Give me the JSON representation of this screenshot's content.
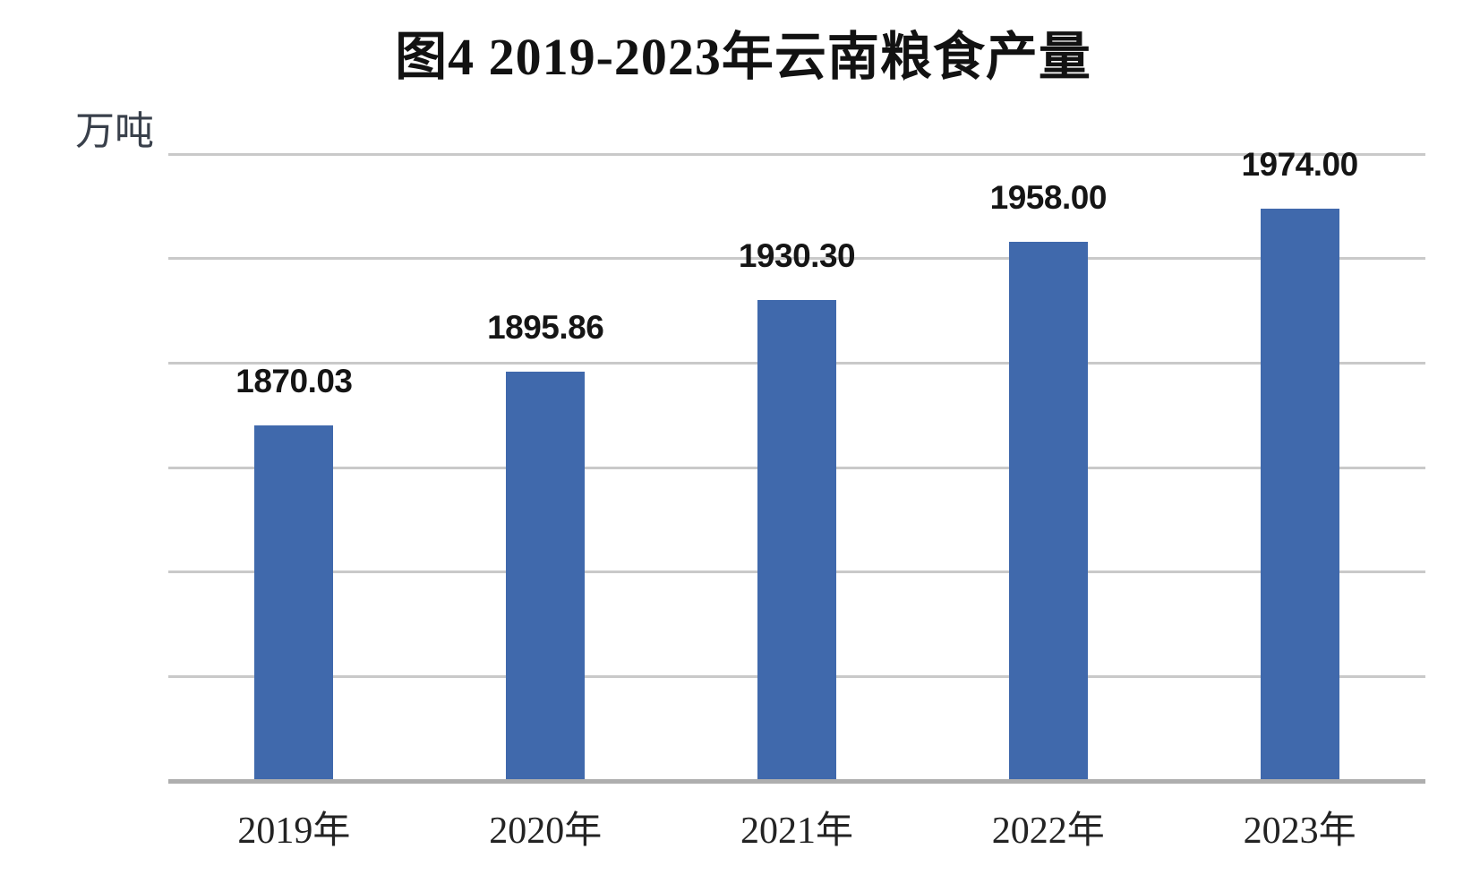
{
  "chart_data": {
    "type": "bar",
    "title": "图4 2019-2023年云南粮食产量",
    "unit_label": "万吨",
    "categories": [
      "2019年",
      "2020年",
      "2021年",
      "2022年",
      "2023年"
    ],
    "values": [
      1870.03,
      1895.86,
      1930.3,
      1958.0,
      1974.0
    ],
    "data_labels": [
      "1870.03",
      "1895.86",
      "1930.30",
      "1958.00",
      "1974.00"
    ],
    "xlabel": "",
    "ylabel": "万吨",
    "ylim": [
      1700,
      2000
    ],
    "gridline_step": 50,
    "grid": "horizontal-only",
    "y_tick_labels_visible": false,
    "legend": "none",
    "colors": {
      "bar": "#4069ac",
      "gridline": "#c9c9c9",
      "axis_line": "#aeaeae",
      "title_text": "#121212",
      "label_text": "#151515",
      "background": "#ffffff"
    }
  }
}
